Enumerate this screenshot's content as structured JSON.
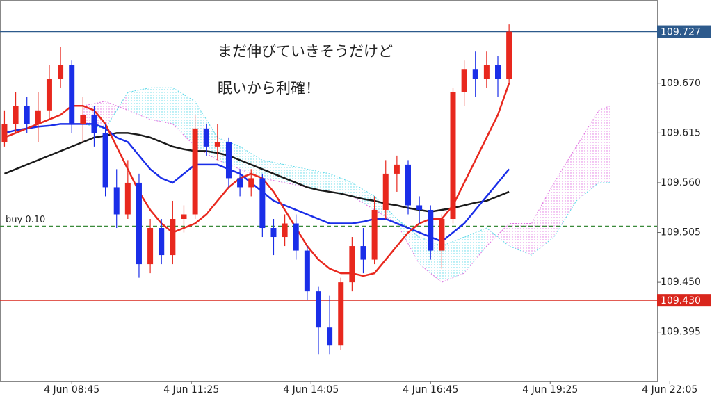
{
  "chart_data": {
    "type": "candlestick",
    "annotations": [
      "まだ伸びていきそうだけど",
      "眠いから利確！"
    ],
    "xlim": [
      "4 Jun 07:09",
      "4 Jun 21:48"
    ],
    "xticks": [
      "4 Jun 08:45",
      "4 Jun 11:25",
      "4 Jun 14:05",
      "4 Jun 16:45",
      "4 Jun 19:25",
      "4 Jun 22:05"
    ],
    "ylim": [
      109.341,
      109.762
    ],
    "yticks": [
      {
        "value": 109.67,
        "label": "109.670"
      },
      {
        "value": 109.615,
        "label": "109.615"
      },
      {
        "value": 109.56,
        "label": "109.560"
      },
      {
        "value": 109.505,
        "label": "109.505"
      },
      {
        "value": 109.45,
        "label": "109.450"
      },
      {
        "value": 109.395,
        "label": "109.395"
      }
    ],
    "up_color": "#e8281e",
    "down_color": "#1a2ee8",
    "candles": {
      "x": [
        "4 Jun 07:15",
        "4 Jun 07:30",
        "4 Jun 07:45",
        "4 Jun 08:00",
        "4 Jun 08:15",
        "4 Jun 08:30",
        "4 Jun 08:45",
        "4 Jun 09:00",
        "4 Jun 09:15",
        "4 Jun 09:30",
        "4 Jun 09:45",
        "4 Jun 10:00",
        "4 Jun 10:15",
        "4 Jun 10:30",
        "4 Jun 10:45",
        "4 Jun 11:00",
        "4 Jun 11:15",
        "4 Jun 11:30",
        "4 Jun 11:45",
        "4 Jun 12:00",
        "4 Jun 12:15",
        "4 Jun 12:30",
        "4 Jun 12:45",
        "4 Jun 13:00",
        "4 Jun 13:15",
        "4 Jun 13:30",
        "4 Jun 13:45",
        "4 Jun 14:00",
        "4 Jun 14:15",
        "4 Jun 14:30",
        "4 Jun 14:45",
        "4 Jun 15:00",
        "4 Jun 15:15",
        "4 Jun 15:30",
        "4 Jun 15:45",
        "4 Jun 16:00",
        "4 Jun 16:15",
        "4 Jun 16:30",
        "4 Jun 16:45",
        "4 Jun 17:00",
        "4 Jun 17:15",
        "4 Jun 17:30",
        "4 Jun 17:45",
        "4 Jun 18:00",
        "4 Jun 18:15",
        "4 Jun 18:30"
      ],
      "open": [
        109.605,
        109.625,
        109.645,
        109.625,
        109.64,
        109.675,
        109.69,
        109.625,
        109.635,
        109.615,
        109.555,
        109.525,
        109.56,
        109.47,
        109.51,
        109.48,
        109.52,
        109.525,
        109.62,
        109.6,
        109.605,
        109.565,
        109.555,
        109.565,
        109.51,
        109.5,
        109.515,
        109.485,
        109.44,
        109.4,
        109.38,
        109.45,
        109.49,
        109.475,
        109.53,
        109.57,
        109.58,
        109.535,
        109.53,
        109.485,
        109.52,
        109.66,
        109.685,
        109.675,
        109.69,
        109.675
      ],
      "high": [
        109.64,
        109.66,
        109.655,
        109.66,
        109.69,
        109.71,
        109.695,
        109.655,
        109.645,
        109.625,
        109.575,
        109.585,
        109.57,
        109.52,
        109.52,
        109.54,
        109.535,
        109.635,
        109.625,
        109.625,
        109.61,
        109.575,
        109.575,
        109.57,
        109.52,
        109.525,
        109.525,
        109.49,
        109.445,
        109.435,
        109.455,
        109.5,
        109.51,
        109.545,
        109.585,
        109.59,
        109.585,
        109.545,
        109.535,
        109.525,
        109.665,
        109.695,
        109.705,
        109.705,
        109.7,
        109.735
      ],
      "low": [
        109.6,
        109.615,
        109.615,
        109.605,
        109.63,
        109.665,
        109.615,
        109.605,
        109.6,
        109.545,
        109.51,
        109.52,
        109.455,
        109.46,
        109.47,
        109.47,
        109.505,
        109.52,
        109.59,
        109.585,
        109.555,
        109.545,
        109.545,
        109.5,
        109.48,
        109.49,
        109.475,
        109.43,
        109.37,
        109.37,
        109.375,
        109.44,
        109.46,
        109.47,
        109.52,
        109.55,
        109.525,
        109.515,
        109.475,
        109.465,
        109.515,
        109.645,
        109.655,
        109.665,
        109.655,
        109.67
      ],
      "close": [
        109.625,
        109.645,
        109.625,
        109.64,
        109.675,
        109.69,
        109.625,
        109.635,
        109.615,
        109.555,
        109.525,
        109.56,
        109.47,
        109.51,
        109.48,
        109.52,
        109.525,
        109.62,
        109.6,
        109.605,
        109.565,
        109.555,
        109.565,
        109.51,
        109.5,
        109.515,
        109.485,
        109.44,
        109.4,
        109.38,
        109.45,
        109.49,
        109.475,
        109.53,
        109.57,
        109.58,
        109.535,
        109.53,
        109.485,
        109.52,
        109.66,
        109.685,
        109.675,
        109.69,
        109.675,
        109.727
      ]
    },
    "ma_lines": [
      {
        "color": "#1a1a1a",
        "values": [
          109.57,
          109.575,
          109.58,
          109.585,
          109.59,
          109.595,
          109.6,
          109.605,
          109.61,
          109.612,
          109.615,
          109.615,
          109.613,
          109.61,
          109.605,
          109.6,
          109.597,
          109.595,
          109.595,
          109.593,
          109.59,
          109.585,
          109.58,
          109.575,
          109.57,
          109.565,
          109.56,
          109.555,
          109.552,
          109.55,
          109.548,
          109.545,
          109.542,
          109.54,
          109.537,
          109.535,
          109.532,
          109.53,
          109.528,
          109.53,
          109.532,
          109.535,
          109.538,
          109.54,
          109.545,
          109.55
        ]
      },
      {
        "color": "#1a2ee8",
        "values": [
          109.615,
          109.618,
          109.62,
          109.622,
          109.623,
          109.625,
          109.625,
          109.625,
          109.625,
          109.62,
          109.61,
          109.605,
          109.59,
          109.575,
          109.565,
          109.56,
          109.57,
          109.58,
          109.58,
          109.58,
          109.575,
          109.57,
          109.56,
          109.55,
          109.54,
          109.535,
          109.53,
          109.525,
          109.52,
          109.515,
          109.515,
          109.515,
          109.517,
          109.52,
          109.52,
          109.515,
          109.51,
          109.505,
          109.5,
          109.495,
          109.505,
          109.515,
          109.53,
          109.545,
          109.56,
          109.575
        ]
      },
      {
        "color": "#e8281e",
        "values": [
          109.61,
          109.615,
          109.62,
          109.625,
          109.63,
          109.635,
          109.645,
          109.645,
          109.64,
          109.625,
          109.6,
          109.575,
          109.55,
          109.53,
          109.515,
          109.505,
          109.51,
          109.515,
          109.525,
          109.54,
          109.555,
          109.565,
          109.57,
          109.565,
          109.55,
          109.53,
          109.51,
          109.49,
          109.475,
          109.465,
          109.46,
          109.46,
          109.457,
          109.46,
          109.475,
          109.49,
          109.505,
          109.515,
          109.52,
          109.52,
          109.535,
          109.56,
          109.585,
          109.61,
          109.635,
          109.67
        ]
      }
    ],
    "cloud": {
      "x": [
        "4 Jun 09:00",
        "4 Jun 09:30",
        "4 Jun 10:00",
        "4 Jun 10:30",
        "4 Jun 11:00",
        "4 Jun 11:30",
        "4 Jun 12:00",
        "4 Jun 12:30",
        "4 Jun 13:00",
        "4 Jun 13:30",
        "4 Jun 14:00",
        "4 Jun 14:30",
        "4 Jun 15:00",
        "4 Jun 15:30",
        "4 Jun 16:00",
        "4 Jun 16:30",
        "4 Jun 17:00",
        "4 Jun 17:30",
        "4 Jun 18:00",
        "4 Jun 18:30",
        "4 Jun 19:00",
        "4 Jun 19:30",
        "4 Jun 20:00",
        "4 Jun 20:30",
        "4 Jun 20:45"
      ],
      "span_a": [
        109.625,
        109.62,
        109.66,
        109.665,
        109.665,
        109.65,
        109.61,
        109.6,
        109.585,
        109.58,
        109.575,
        109.57,
        109.56,
        109.545,
        109.52,
        109.5,
        109.49,
        109.5,
        109.51,
        109.49,
        109.48,
        109.5,
        109.54,
        109.56,
        109.56
      ],
      "span_b": [
        109.645,
        109.65,
        109.64,
        109.63,
        109.625,
        109.6,
        109.585,
        109.575,
        109.565,
        109.56,
        109.555,
        109.55,
        109.545,
        109.53,
        109.515,
        109.47,
        109.45,
        109.46,
        109.49,
        109.515,
        109.515,
        109.56,
        109.6,
        109.64,
        109.645
      ],
      "up_color": "#58d8e8",
      "down_color": "#e070e0"
    },
    "price_line": {
      "value": 109.727,
      "label": "109.727",
      "color": "#2d5a8c"
    },
    "stop_line": {
      "value": 109.43,
      "label": "109.430",
      "color": "#d9261c"
    },
    "order_line": {
      "value": 109.512,
      "label": "buy 0.10",
      "color": "#3a8a3a"
    }
  }
}
